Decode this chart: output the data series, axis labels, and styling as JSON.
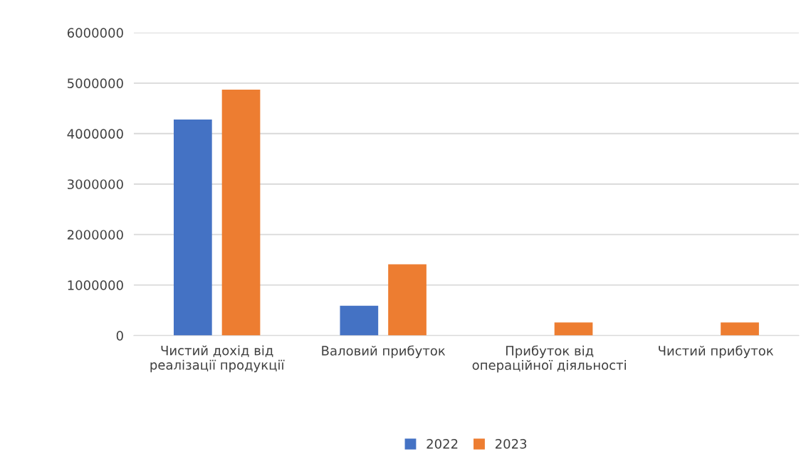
{
  "chart_data": {
    "type": "bar",
    "categories": [
      "Чистий дохід від\nреалізації продукції",
      "Валовий прибуток",
      "Прибуток від\nопераційної діяльності",
      "Чистий прибуток"
    ],
    "series": [
      {
        "name": "2022",
        "color": "#4472c4",
        "values": [
          4280000,
          590000,
          0,
          0
        ]
      },
      {
        "name": "2023",
        "color": "#ed7d31",
        "values": [
          4870000,
          1410000,
          260000,
          260000
        ]
      }
    ],
    "ylim": [
      0,
      6000000
    ],
    "yticks": [
      0,
      1000000,
      2000000,
      3000000,
      4000000,
      5000000,
      6000000
    ],
    "grid": "y",
    "legend": "bottom"
  }
}
